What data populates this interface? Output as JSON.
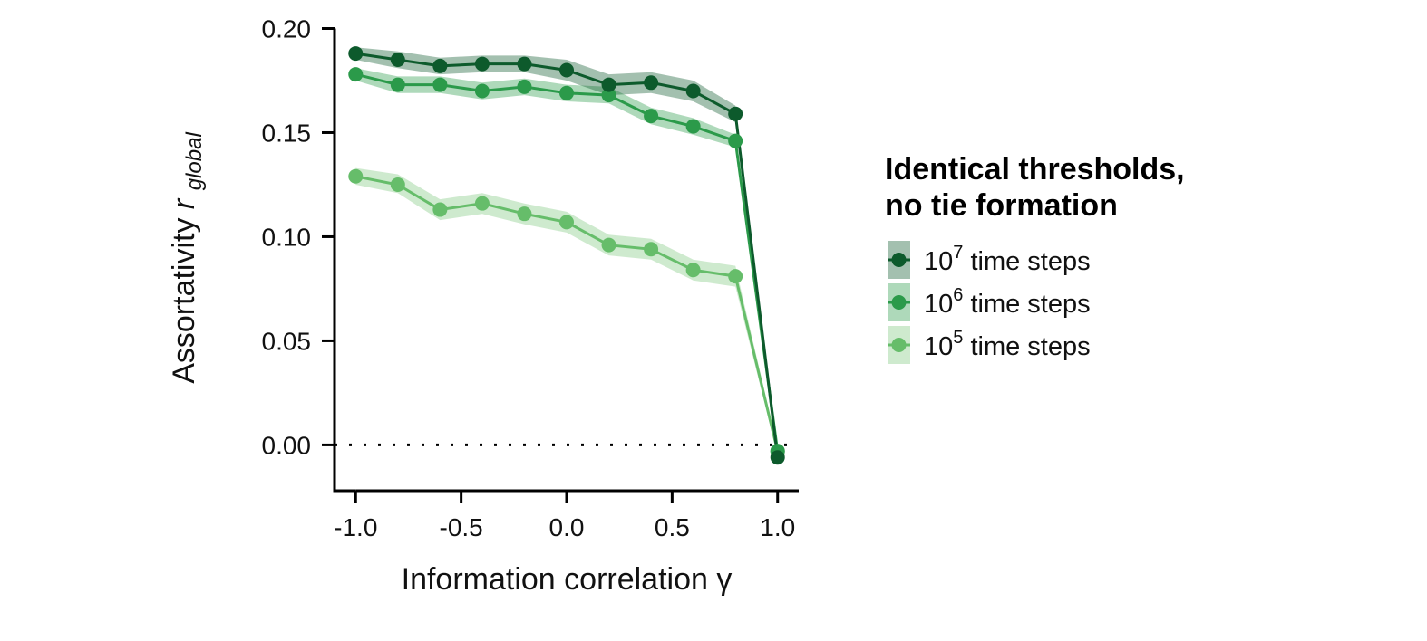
{
  "chart_data": {
    "type": "line",
    "xlabel": "Information correlation γ",
    "ylabel": "Assortativity",
    "ylabel_symbol": "r",
    "ylabel_subscript": "global",
    "xlim": [
      -1.1,
      1.1
    ],
    "ylim": [
      -0.022,
      0.205
    ],
    "xticks": [
      -1.0,
      -0.5,
      0.0,
      0.5,
      1.0
    ],
    "xtick_labels": [
      "-1.0",
      "-0.5",
      "0.0",
      "0.5",
      "1.0"
    ],
    "yticks": [
      0.0,
      0.05,
      0.1,
      0.15,
      0.2
    ],
    "ytick_labels": [
      "0.00",
      "0.05",
      "0.10",
      "0.15",
      "0.20"
    ],
    "reference_line": {
      "y": 0.0,
      "style": "dotted"
    },
    "grid": false,
    "legend": {
      "title_line1": "Identical thresholds,",
      "title_line2": "no tie formation",
      "placement": "right"
    },
    "x": [
      -1.0,
      -0.8,
      -0.6,
      -0.4,
      -0.2,
      0.0,
      0.2,
      0.4,
      0.6,
      0.8,
      1.0
    ],
    "series": [
      {
        "name_base": "10",
        "name_exp": "7",
        "name_rest": " time steps",
        "color": "#0d5a2c",
        "band_color": "#0d5a2c",
        "values": [
          0.188,
          0.185,
          0.182,
          0.183,
          0.183,
          0.18,
          0.173,
          0.174,
          0.17,
          0.159,
          -0.006
        ],
        "lower": [
          0.185,
          0.181,
          0.178,
          0.179,
          0.179,
          0.175,
          0.168,
          0.169,
          0.165,
          0.155,
          -0.008
        ],
        "upper": [
          0.191,
          0.189,
          0.186,
          0.187,
          0.187,
          0.185,
          0.178,
          0.179,
          0.175,
          0.163,
          -0.004
        ]
      },
      {
        "name_base": "10",
        "name_exp": "6",
        "name_rest": " time steps",
        "color": "#2b9a4a",
        "band_color": "#2b9a4a",
        "values": [
          0.178,
          0.173,
          0.173,
          0.17,
          0.172,
          0.169,
          0.168,
          0.158,
          0.153,
          0.146,
          -0.003
        ],
        "lower": [
          0.175,
          0.169,
          0.169,
          0.166,
          0.168,
          0.165,
          0.164,
          0.154,
          0.149,
          0.143,
          -0.005
        ],
        "upper": [
          0.181,
          0.177,
          0.177,
          0.174,
          0.176,
          0.173,
          0.172,
          0.162,
          0.157,
          0.149,
          -0.001
        ]
      },
      {
        "name_base": "10",
        "name_exp": "5",
        "name_rest": " time steps",
        "color": "#66bd6a",
        "band_color": "#7fc97f",
        "values": [
          0.129,
          0.125,
          0.113,
          0.116,
          0.111,
          0.107,
          0.096,
          0.094,
          0.084,
          0.081,
          -0.003
        ],
        "lower": [
          0.125,
          0.121,
          0.108,
          0.111,
          0.106,
          0.102,
          0.091,
          0.089,
          0.079,
          0.076,
          -0.005
        ],
        "upper": [
          0.133,
          0.13,
          0.118,
          0.121,
          0.116,
          0.112,
          0.101,
          0.099,
          0.089,
          0.086,
          -0.001
        ]
      }
    ]
  }
}
